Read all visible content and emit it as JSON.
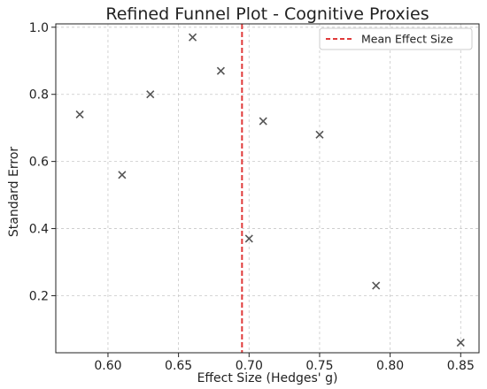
{
  "chart_data": {
    "type": "scatter",
    "title": "Refined Funnel Plot - Cognitive Proxies",
    "xlabel": "Effect Size (Hedges' g)",
    "ylabel": "Standard Error",
    "xlim": [
      0.563,
      0.863
    ],
    "ylim": [
      0.03,
      1.01
    ],
    "xticks": [
      0.6,
      0.65,
      0.7,
      0.75,
      0.8,
      0.85
    ],
    "xtick_labels": [
      "0.60",
      "0.65",
      "0.70",
      "0.75",
      "0.80",
      "0.85"
    ],
    "yticks": [
      0.2,
      0.4,
      0.6,
      0.8,
      1.0
    ],
    "ytick_labels": [
      "0.2",
      "0.4",
      "0.6",
      "0.8",
      "1.0"
    ],
    "grid": true,
    "legend_position": "top-right",
    "marker": "x",
    "marker_color": "#555555",
    "series": [
      {
        "x": [
          0.58,
          0.61,
          0.63,
          0.66,
          0.68,
          0.7,
          0.71,
          0.75,
          0.79,
          0.85
        ],
        "y": [
          0.74,
          0.56,
          0.8,
          0.97,
          0.87,
          0.37,
          0.72,
          0.68,
          0.23,
          0.06
        ]
      }
    ],
    "reference_lines": [
      {
        "name": "Mean Effect Size",
        "orientation": "vertical",
        "x": 0.695,
        "color": "#e03a3a",
        "style": "dashed"
      }
    ]
  }
}
